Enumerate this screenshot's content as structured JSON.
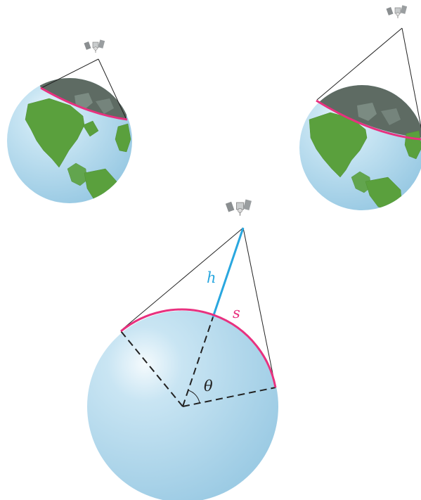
{
  "diagram": {
    "labels": {
      "height": "h",
      "arc": "s",
      "angle": "θ"
    },
    "colors": {
      "ocean": "#a9d4ea",
      "land": "#5aa03d",
      "shadow": "#5e6b63",
      "visible_arc": "#e8317f",
      "height_line": "#29a7df",
      "line": "#222222"
    },
    "icons": [
      "satellite-icon"
    ]
  }
}
